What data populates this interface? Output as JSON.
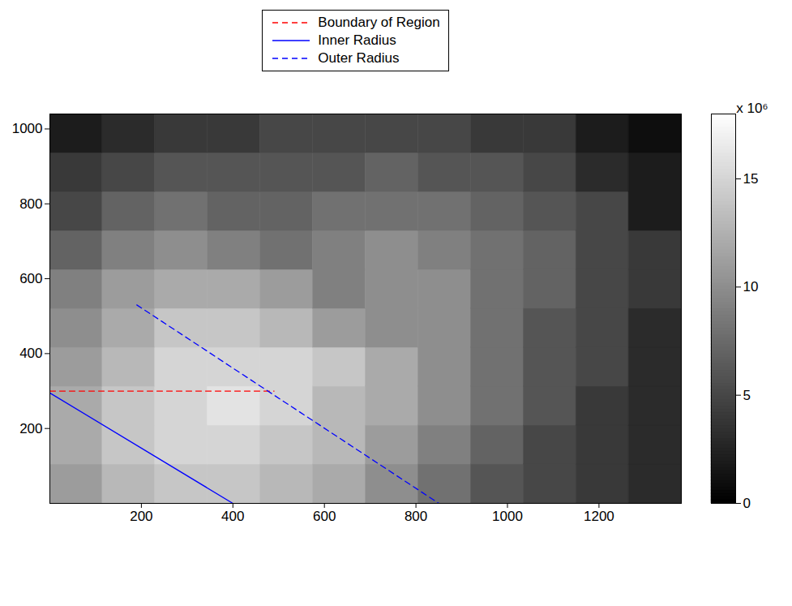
{
  "chart_data": {
    "type": "heatmap",
    "xlim": [
      0,
      1380
    ],
    "ylim": [
      0,
      1040
    ],
    "xticks": [
      200,
      400,
      600,
      800,
      1000,
      1200
    ],
    "yticks": [
      200,
      400,
      600,
      800,
      1000
    ],
    "legend": "top",
    "x_edges": [
      0,
      115,
      230,
      345,
      460,
      575,
      690,
      805,
      920,
      1035,
      1150,
      1265,
      1380
    ],
    "y_edges": [
      0,
      104,
      208,
      312,
      416,
      520,
      624,
      728,
      832,
      936,
      1040
    ],
    "cells": [
      [
        11,
        13,
        14,
        14,
        13,
        12,
        10,
        8,
        6,
        5,
        4,
        3
      ],
      [
        12,
        14,
        15,
        15,
        14,
        13,
        11,
        9,
        7,
        5,
        4,
        3
      ],
      [
        12,
        14,
        15,
        16,
        15,
        13,
        12,
        10,
        8,
        6,
        4,
        3
      ],
      [
        11,
        13,
        15,
        15,
        15,
        14,
        12,
        10,
        8,
        6,
        5,
        3
      ],
      [
        10,
        12,
        14,
        14,
        13,
        11,
        10,
        10,
        8,
        6,
        5,
        3
      ],
      [
        9,
        11,
        12,
        12,
        11,
        9,
        10,
        10,
        8,
        7,
        5,
        4
      ],
      [
        7,
        9,
        10,
        9,
        8,
        9,
        10,
        9,
        8,
        7,
        5,
        4
      ],
      [
        5,
        7,
        8,
        7,
        7,
        8,
        8,
        8,
        7,
        6,
        5,
        2
      ],
      [
        4,
        5,
        6,
        6,
        6,
        6,
        7,
        6,
        6,
        5,
        3,
        2
      ],
      [
        2,
        3,
        4,
        4,
        5,
        5,
        5,
        5,
        4,
        4,
        2,
        1
      ]
    ],
    "colorbar": {
      "label": "x 10⁶",
      "range": [
        0,
        18
      ],
      "ticks": [
        0,
        5,
        10,
        15
      ]
    },
    "series": [
      {
        "name": "Boundary of Region",
        "type": "line",
        "color": "#ff0000",
        "line_style": "dashed",
        "x": [
          0,
          490
        ],
        "y": [
          300,
          300
        ]
      },
      {
        "name": "Inner Radius",
        "type": "line",
        "color": "#0000ff",
        "line_style": "solid",
        "x": [
          0,
          400
        ],
        "y": [
          295,
          0
        ]
      },
      {
        "name": "Outer Radius",
        "type": "line",
        "color": "#0000ff",
        "line_style": "dashed",
        "x": [
          190,
          850
        ],
        "y": [
          530,
          0
        ]
      }
    ]
  }
}
